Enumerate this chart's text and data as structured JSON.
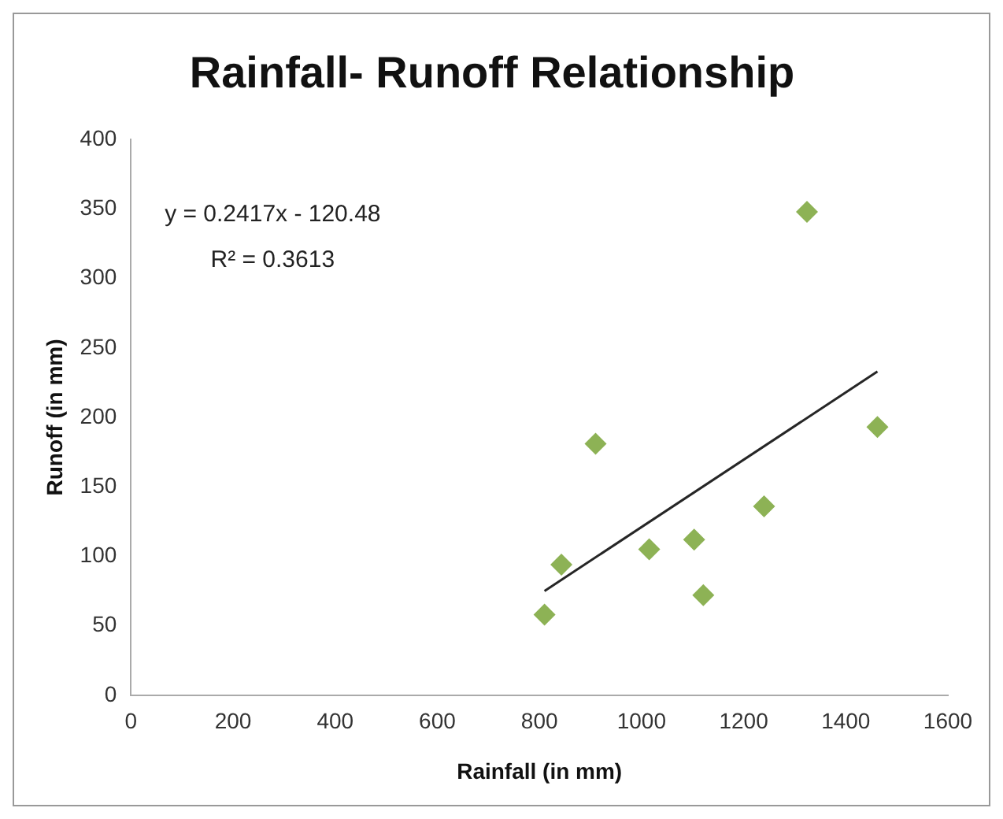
{
  "chart_data": {
    "type": "scatter",
    "title": "Rainfall- Runoff Relationship",
    "xlabel": "Rainfall (in mm)",
    "ylabel": "Runoff (in mm)",
    "xlim": [
      0,
      1600
    ],
    "xticks": [
      0,
      200,
      400,
      600,
      800,
      1000,
      1200,
      1400,
      1600
    ],
    "ylim": [
      0,
      400
    ],
    "yticks": [
      0,
      50,
      100,
      150,
      200,
      250,
      300,
      350,
      400
    ],
    "grid": false,
    "legend": false,
    "marker": "diamond",
    "series": [
      {
        "type": "scatter",
        "color": "#8db255",
        "x": [
          810,
          843,
          910,
          1015,
          1103,
          1121,
          1240,
          1324,
          1462
        ],
        "values": [
          58,
          94,
          181,
          105,
          112,
          72,
          136,
          348,
          193
        ]
      },
      {
        "type": "line",
        "color": "#262626",
        "marker": "none",
        "x": [
          810,
          1462
        ],
        "values": [
          75,
          233
        ]
      }
    ],
    "annotations": [
      "y = 0.2417x - 120.48",
      "R² = 0.3613"
    ]
  }
}
